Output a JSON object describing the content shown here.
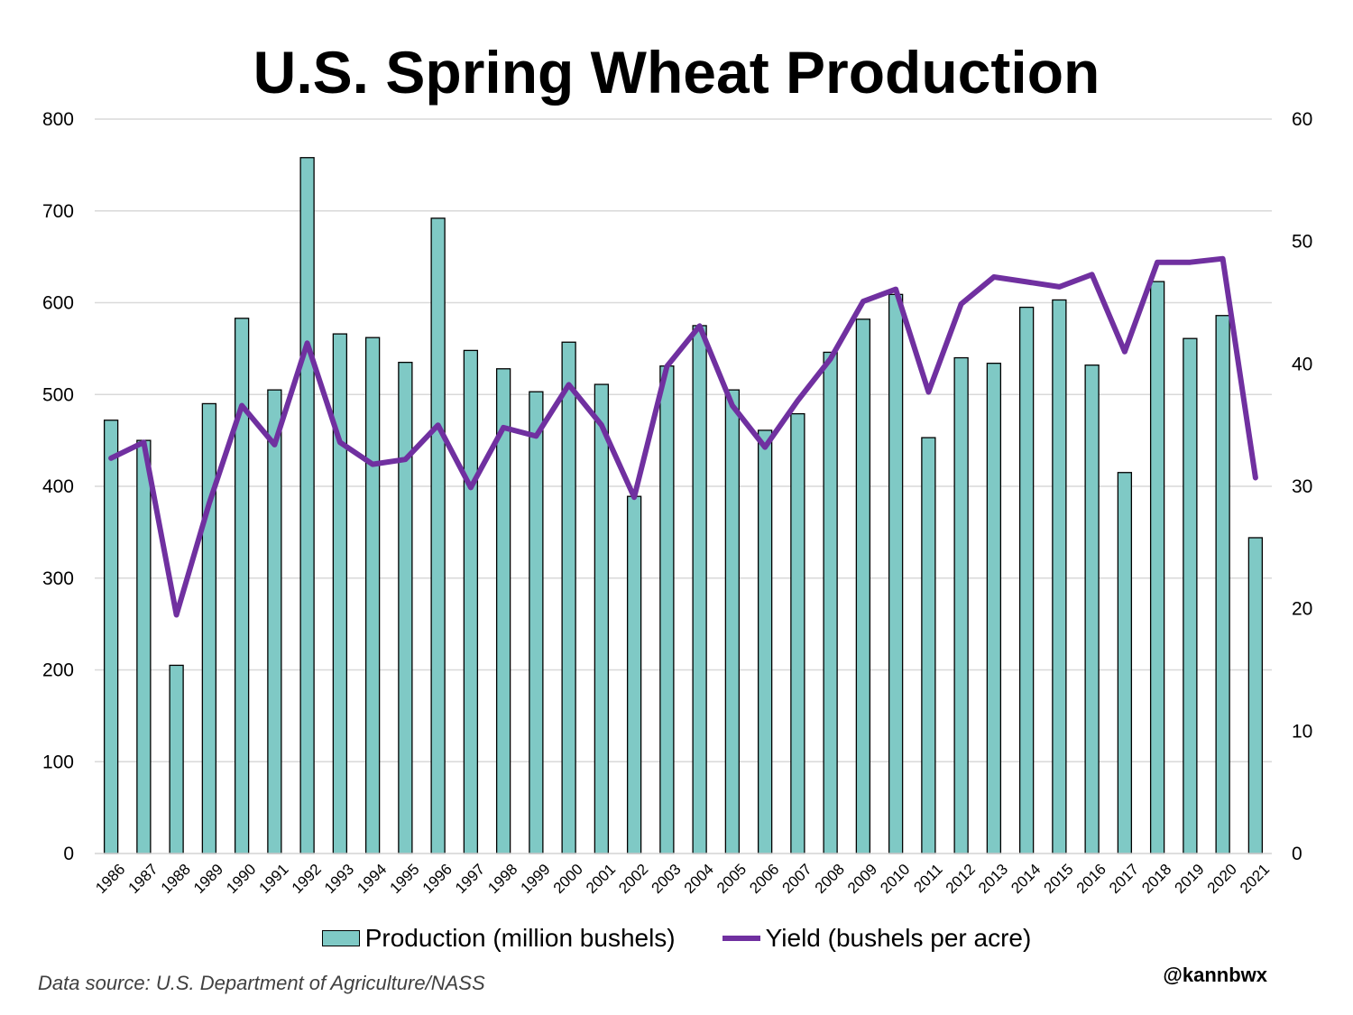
{
  "chart_data": {
    "type": "bar",
    "title": "U.S. Spring Wheat Production",
    "categories": [
      "1986",
      "1987",
      "1988",
      "1989",
      "1990",
      "1991",
      "1992",
      "1993",
      "1994",
      "1995",
      "1996",
      "1997",
      "1998",
      "1999",
      "2000",
      "2001",
      "2002",
      "2003",
      "2004",
      "2005",
      "2006",
      "2007",
      "2008",
      "2009",
      "2010",
      "2011",
      "2012",
      "2013",
      "2014",
      "2015",
      "2016",
      "2017",
      "2018",
      "2019",
      "2020",
      "2021"
    ],
    "series": [
      {
        "name": "Production (million bushels)",
        "type": "bar",
        "axis": "left",
        "color": "#7fc9c5",
        "values": [
          472,
          450,
          205,
          490,
          583,
          505,
          758,
          566,
          562,
          535,
          692,
          548,
          528,
          503,
          557,
          511,
          389,
          531,
          575,
          505,
          461,
          479,
          546,
          582,
          609,
          453,
          540,
          534,
          595,
          603,
          532,
          415,
          623,
          561,
          586,
          344
        ]
      },
      {
        "name": "Yield (bushels per acre)",
        "type": "line",
        "axis": "right",
        "color": "#7030a0",
        "values": [
          32.3,
          33.6,
          19.5,
          28.6,
          36.6,
          33.4,
          41.7,
          33.6,
          31.8,
          32.2,
          35.0,
          29.9,
          34.8,
          34.1,
          38.3,
          35.0,
          29.1,
          39.8,
          43.1,
          36.6,
          33.2,
          37.0,
          40.4,
          45.1,
          46.1,
          37.7,
          44.9,
          47.1,
          46.7,
          46.3,
          47.3,
          41.0,
          48.3,
          48.3,
          48.6,
          30.7
        ]
      }
    ],
    "yleft_lim": [
      0,
      800
    ],
    "yleft_ticks": [
      "0",
      "100",
      "200",
      "300",
      "400",
      "500",
      "600",
      "700",
      "800"
    ],
    "yright_lim": [
      0,
      60
    ],
    "yright_ticks": [
      "0",
      "10",
      "20",
      "30",
      "40",
      "50",
      "60"
    ],
    "grid": "horizontal",
    "legend": "bottom",
    "source": "Data source: U.S. Department of Agriculture/NASS",
    "credit": "@kannbwx"
  }
}
